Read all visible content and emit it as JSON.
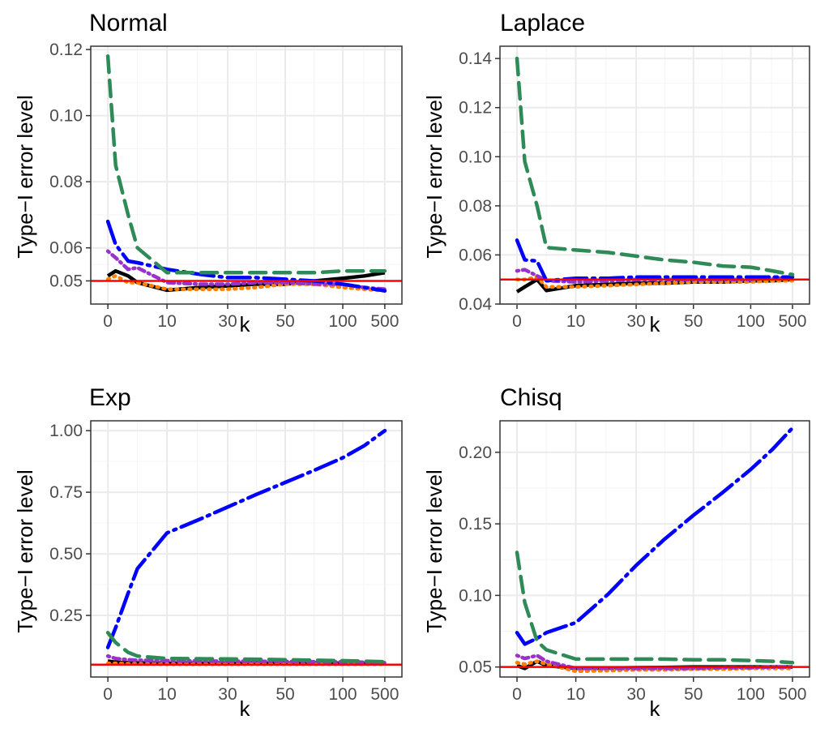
{
  "colors": {
    "background": "#ffffff",
    "panel_border": "#333333",
    "grid_major": "#ebebeb",
    "grid_minor": "#f5f5f5",
    "reference_line": "#ff0000",
    "tick_text": "#4d4d4d"
  },
  "chart_data": [
    {
      "type": "line",
      "title": "Normal",
      "xlabel": "k",
      "ylabel": "Type−I error level",
      "x_scale": "categorical-ordinal",
      "categories": [
        "0",
        "1",
        "3",
        "5",
        "10",
        "20",
        "30",
        "40",
        "50",
        "75",
        "100",
        "200",
        "500"
      ],
      "x_tick_labels": [
        "0",
        "10",
        "30",
        "50",
        "100",
        "500"
      ],
      "y_ticks": [
        "0.05",
        "0.06",
        "0.08",
        "0.10",
        "0.12"
      ],
      "ylim": [
        0.043,
        0.121
      ],
      "reference_line": 0.05,
      "grid": true,
      "series": [
        {
          "color": "#000000",
          "dash": "solid",
          "values": [
            0.0515,
            0.053,
            0.0515,
            0.0495,
            0.0472,
            0.048,
            0.0485,
            0.049,
            0.049,
            0.05,
            0.0508,
            0.0515,
            0.0525
          ]
        },
        {
          "color": "#ff7f00",
          "dash": "dotted",
          "values": [
            0.0505,
            0.0515,
            0.0495,
            0.0495,
            0.0475,
            0.0475,
            0.0475,
            0.048,
            0.049,
            0.049,
            0.048,
            0.0475,
            0.047
          ]
        },
        {
          "color": "#9932cc",
          "dash": "dotdash",
          "values": [
            0.059,
            0.057,
            0.0535,
            0.054,
            0.0495,
            0.049,
            0.049,
            0.0495,
            0.0495,
            0.049,
            0.049,
            0.048,
            0.0475
          ]
        },
        {
          "color": "#0000ff",
          "dash": "longdash-dot",
          "values": [
            0.068,
            0.061,
            0.056,
            0.0555,
            0.0535,
            0.052,
            0.051,
            0.051,
            0.0505,
            0.05,
            0.049,
            0.048,
            0.047
          ]
        },
        {
          "color": "#2e8b57",
          "dash": "dashed",
          "values": [
            0.118,
            0.085,
            0.07,
            0.06,
            0.0525,
            0.0525,
            0.0525,
            0.0525,
            0.0525,
            0.0525,
            0.053,
            0.053,
            0.053
          ]
        }
      ]
    },
    {
      "type": "line",
      "title": "Laplace",
      "xlabel": "k",
      "ylabel": "Type−I error level",
      "x_scale": "categorical-ordinal",
      "categories": [
        "0",
        "1",
        "3",
        "5",
        "10",
        "20",
        "30",
        "40",
        "50",
        "75",
        "100",
        "200",
        "500"
      ],
      "x_tick_labels": [
        "0",
        "10",
        "30",
        "50",
        "100",
        "500"
      ],
      "y_ticks": [
        "0.04",
        "0.06",
        "0.08",
        "0.10",
        "0.12",
        "0.14"
      ],
      "ylim": [
        0.04,
        0.145
      ],
      "reference_line": 0.05,
      "grid": true,
      "series": [
        {
          "color": "#000000",
          "dash": "solid",
          "values": [
            0.045,
            0.047,
            0.05,
            0.0455,
            0.0475,
            0.048,
            0.0485,
            0.0485,
            0.049,
            0.049,
            0.0495,
            0.0495,
            0.05
          ]
        },
        {
          "color": "#ff7f00",
          "dash": "dotted",
          "values": [
            0.05,
            0.05,
            0.051,
            0.047,
            0.047,
            0.0475,
            0.048,
            0.0485,
            0.049,
            0.049,
            0.049,
            0.0495,
            0.0495
          ]
        },
        {
          "color": "#9932cc",
          "dash": "dotdash",
          "values": [
            0.0535,
            0.054,
            0.0515,
            0.0495,
            0.049,
            0.0495,
            0.05,
            0.05,
            0.05,
            0.05,
            0.05,
            0.0505,
            0.0505
          ]
        },
        {
          "color": "#0000ff",
          "dash": "longdash-dot",
          "values": [
            0.066,
            0.058,
            0.0575,
            0.0495,
            0.0505,
            0.0505,
            0.051,
            0.051,
            0.051,
            0.051,
            0.051,
            0.051,
            0.051
          ]
        },
        {
          "color": "#2e8b57",
          "dash": "dashed",
          "values": [
            0.14,
            0.098,
            0.08,
            0.063,
            0.062,
            0.061,
            0.0595,
            0.058,
            0.057,
            0.0555,
            0.055,
            0.0535,
            0.052
          ]
        }
      ]
    },
    {
      "type": "line",
      "title": "Exp",
      "xlabel": "k",
      "ylabel": "Type−I error level",
      "x_scale": "categorical-ordinal",
      "categories": [
        "0",
        "1",
        "3",
        "5",
        "10",
        "20",
        "30",
        "40",
        "50",
        "75",
        "100",
        "200",
        "500"
      ],
      "x_tick_labels": [
        "0",
        "10",
        "30",
        "50",
        "100",
        "500"
      ],
      "y_ticks": [
        "0.25",
        "0.50",
        "0.75",
        "1.00"
      ],
      "ylim": [
        0.0,
        1.04
      ],
      "reference_line": 0.05,
      "grid": true,
      "series": [
        {
          "color": "#000000",
          "dash": "solid",
          "values": [
            0.065,
            0.06,
            0.058,
            0.057,
            0.055,
            0.055,
            0.055,
            0.056,
            0.056,
            0.056,
            0.056,
            0.056,
            0.055
          ]
        },
        {
          "color": "#ff7f00",
          "dash": "dotted",
          "values": [
            0.055,
            0.055,
            0.054,
            0.053,
            0.052,
            0.052,
            0.052,
            0.052,
            0.052,
            0.052,
            0.052,
            0.052,
            0.052
          ]
        },
        {
          "color": "#9932cc",
          "dash": "dotdash",
          "values": [
            0.085,
            0.075,
            0.07,
            0.068,
            0.066,
            0.065,
            0.064,
            0.064,
            0.063,
            0.062,
            0.061,
            0.06,
            0.058
          ]
        },
        {
          "color": "#0000ff",
          "dash": "longdash-dot",
          "values": [
            0.12,
            0.2,
            0.34,
            0.44,
            0.585,
            0.64,
            0.69,
            0.74,
            0.79,
            0.84,
            0.89,
            0.94,
            1.0
          ]
        },
        {
          "color": "#2e8b57",
          "dash": "dashed",
          "values": [
            0.18,
            0.14,
            0.1,
            0.085,
            0.075,
            0.074,
            0.073,
            0.072,
            0.07,
            0.068,
            0.066,
            0.064,
            0.062
          ]
        }
      ]
    },
    {
      "type": "line",
      "title": "Chisq",
      "xlabel": "k",
      "ylabel": "Type−I error level",
      "x_scale": "categorical-ordinal",
      "categories": [
        "0",
        "1",
        "3",
        "5",
        "10",
        "20",
        "30",
        "40",
        "50",
        "75",
        "100",
        "200",
        "500"
      ],
      "x_tick_labels": [
        "0",
        "10",
        "30",
        "50",
        "100",
        "500"
      ],
      "y_ticks": [
        "0.05",
        "0.10",
        "0.15",
        "0.20"
      ],
      "ylim": [
        0.043,
        0.222
      ],
      "reference_line": 0.05,
      "grid": true,
      "series": [
        {
          "color": "#000000",
          "dash": "solid",
          "values": [
            0.051,
            0.049,
            0.054,
            0.051,
            0.049,
            0.0492,
            0.0495,
            0.0497,
            0.05,
            0.05,
            0.05,
            0.05,
            0.05
          ]
        },
        {
          "color": "#ff7f00",
          "dash": "dotted",
          "values": [
            0.053,
            0.052,
            0.054,
            0.052,
            0.047,
            0.0475,
            0.048,
            0.048,
            0.0485,
            0.0485,
            0.049,
            0.049,
            0.049
          ]
        },
        {
          "color": "#9932cc",
          "dash": "dotdash",
          "values": [
            0.058,
            0.056,
            0.058,
            0.054,
            0.049,
            0.049,
            0.049,
            0.049,
            0.049,
            0.0495,
            0.0495,
            0.05,
            0.05
          ]
        },
        {
          "color": "#0000ff",
          "dash": "longdash-dot",
          "values": [
            0.074,
            0.066,
            0.07,
            0.074,
            0.081,
            0.101,
            0.121,
            0.139,
            0.156,
            0.172,
            0.188,
            0.202,
            0.217
          ]
        },
        {
          "color": "#2e8b57",
          "dash": "dashed",
          "values": [
            0.13,
            0.095,
            0.068,
            0.062,
            0.0555,
            0.0555,
            0.0555,
            0.0555,
            0.055,
            0.055,
            0.0545,
            0.054,
            0.053
          ]
        }
      ]
    }
  ]
}
